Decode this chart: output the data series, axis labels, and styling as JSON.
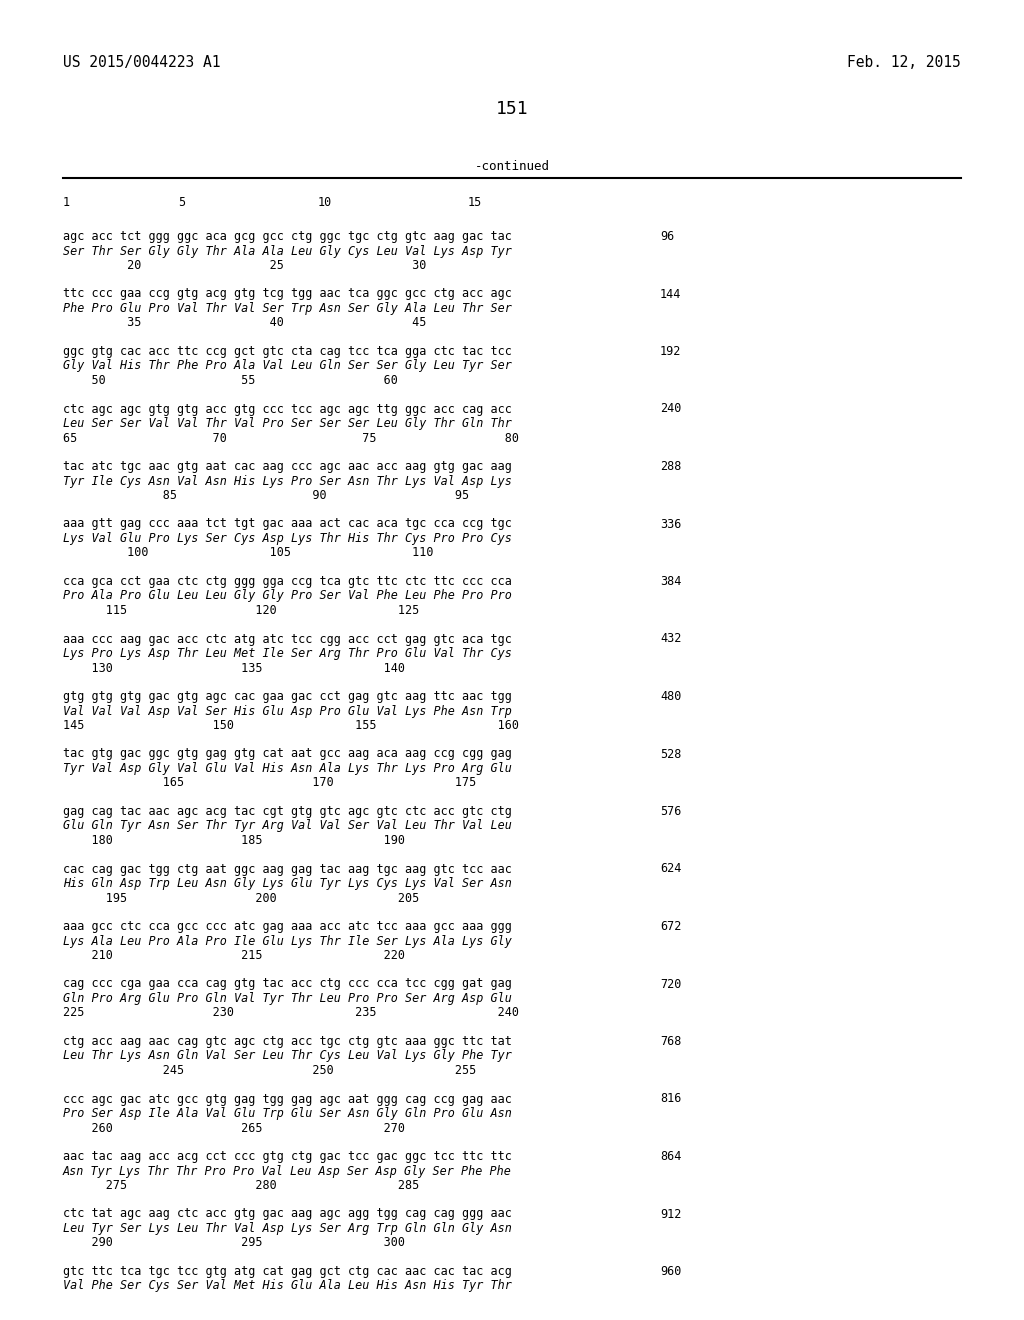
{
  "header_left": "US 2015/0044223 A1",
  "header_right": "Feb. 12, 2015",
  "page_number": "151",
  "continued_label": "-continued",
  "background_color": "#ffffff",
  "text_color": "#000000",
  "sequence_blocks": [
    {
      "dna": "agc acc tct ggg ggc aca gcg gcc ctg ggc tgc ctg gtc aag gac tac",
      "aa": "Ser Thr Ser Gly Gly Thr Ala Ala Leu Gly Cys Leu Val Lys Asp Tyr",
      "pos": "         20                  25                  30",
      "num": "96"
    },
    {
      "dna": "ttc ccc gaa ccg gtg acg gtg tcg tgg aac tca ggc gcc ctg acc agc",
      "aa": "Phe Pro Glu Pro Val Thr Val Ser Trp Asn Ser Gly Ala Leu Thr Ser",
      "pos": "         35                  40                  45",
      "num": "144"
    },
    {
      "dna": "ggc gtg cac acc ttc ccg gct gtc cta cag tcc tca gga ctc tac tcc",
      "aa": "Gly Val His Thr Phe Pro Ala Val Leu Gln Ser Ser Gly Leu Tyr Ser",
      "pos": "    50                   55                  60",
      "num": "192"
    },
    {
      "dna": "ctc agc agc gtg gtg acc gtg ccc tcc agc agc ttg ggc acc cag acc",
      "aa": "Leu Ser Ser Val Val Thr Val Pro Ser Ser Ser Leu Gly Thr Gln Thr",
      "pos": "65                   70                   75                  80",
      "num": "240"
    },
    {
      "dna": "tac atc tgc aac gtg aat cac aag ccc agc aac acc aag gtg gac aag",
      "aa": "Tyr Ile Cys Asn Val Asn His Lys Pro Ser Asn Thr Lys Val Asp Lys",
      "pos": "              85                   90                  95",
      "num": "288"
    },
    {
      "dna": "aaa gtt gag ccc aaa tct tgt gac aaa act cac aca tgc cca ccg tgc",
      "aa": "Lys Val Glu Pro Lys Ser Cys Asp Lys Thr His Thr Cys Pro Pro Cys",
      "pos": "         100                 105                 110",
      "num": "336"
    },
    {
      "dna": "cca gca cct gaa ctc ctg ggg gga ccg tca gtc ttc ctc ttc ccc cca",
      "aa": "Pro Ala Pro Glu Leu Leu Gly Gly Pro Ser Val Phe Leu Phe Pro Pro",
      "pos": "      115                  120                 125",
      "num": "384"
    },
    {
      "dna": "aaa ccc aag gac acc ctc atg atc tcc cgg acc cct gag gtc aca tgc",
      "aa": "Lys Pro Lys Asp Thr Leu Met Ile Ser Arg Thr Pro Glu Val Thr Cys",
      "pos": "    130                  135                 140",
      "num": "432"
    },
    {
      "dna": "gtg gtg gtg gac gtg agc cac gaa gac cct gag gtc aag ttc aac tgg",
      "aa": "Val Val Val Asp Val Ser His Glu Asp Pro Glu Val Lys Phe Asn Trp",
      "pos": "145                  150                 155                 160",
      "num": "480"
    },
    {
      "dna": "tac gtg gac ggc gtg gag gtg cat aat gcc aag aca aag ccg cgg gag",
      "aa": "Tyr Val Asp Gly Val Glu Val His Asn Ala Lys Thr Lys Pro Arg Glu",
      "pos": "              165                  170                 175",
      "num": "528"
    },
    {
      "dna": "gag cag tac aac agc acg tac cgt gtg gtc agc gtc ctc acc gtc ctg",
      "aa": "Glu Gln Tyr Asn Ser Thr Tyr Arg Val Val Ser Val Leu Thr Val Leu",
      "pos": "    180                  185                 190",
      "num": "576"
    },
    {
      "dna": "cac cag gac tgg ctg aat ggc aag gag tac aag tgc aag gtc tcc aac",
      "aa": "His Gln Asp Trp Leu Asn Gly Lys Glu Tyr Lys Cys Lys Val Ser Asn",
      "pos": "      195                  200                 205",
      "num": "624"
    },
    {
      "dna": "aaa gcc ctc cca gcc ccc atc gag aaa acc atc tcc aaa gcc aaa ggg",
      "aa": "Lys Ala Leu Pro Ala Pro Ile Glu Lys Thr Ile Ser Lys Ala Lys Gly",
      "pos": "    210                  215                 220",
      "num": "672"
    },
    {
      "dna": "cag ccc cga gaa cca cag gtg tac acc ctg ccc cca tcc cgg gat gag",
      "aa": "Gln Pro Arg Glu Pro Gln Val Tyr Thr Leu Pro Pro Ser Arg Asp Glu",
      "pos": "225                  230                 235                 240",
      "num": "720"
    },
    {
      "dna": "ctg acc aag aac cag gtc agc ctg acc tgc ctg gtc aaa ggc ttc tat",
      "aa": "Leu Thr Lys Asn Gln Val Ser Leu Thr Cys Leu Val Lys Gly Phe Tyr",
      "pos": "              245                  250                 255",
      "num": "768"
    },
    {
      "dna": "ccc agc gac atc gcc gtg gag tgg gag agc aat ggg cag ccg gag aac",
      "aa": "Pro Ser Asp Ile Ala Val Glu Trp Glu Ser Asn Gly Gln Pro Glu Asn",
      "pos": "    260                  265                 270",
      "num": "816"
    },
    {
      "dna": "aac tac aag acc acg cct ccc gtg ctg gac tcc gac ggc tcc ttc ttc",
      "aa": "Asn Tyr Lys Thr Thr Pro Pro Val Leu Asp Ser Asp Gly Ser Phe Phe",
      "pos": "      275                  280                 285",
      "num": "864"
    },
    {
      "dna": "ctc tat agc aag ctc acc gtg gac aag agc agg tgg cag cag ggg aac",
      "aa": "Leu Tyr Ser Lys Leu Thr Val Asp Lys Ser Arg Trp Gln Gln Gly Asn",
      "pos": "    290                  295                 300",
      "num": "912"
    },
    {
      "dna": "gtc ttc tca tgc tcc gtg atg cat gag gct ctg cac aac cac tac acg",
      "aa": "Val Phe Ser Cys Ser Val Met His Glu Ala Leu His Asn His Tyr Thr",
      "pos": "",
      "num": "960"
    }
  ]
}
